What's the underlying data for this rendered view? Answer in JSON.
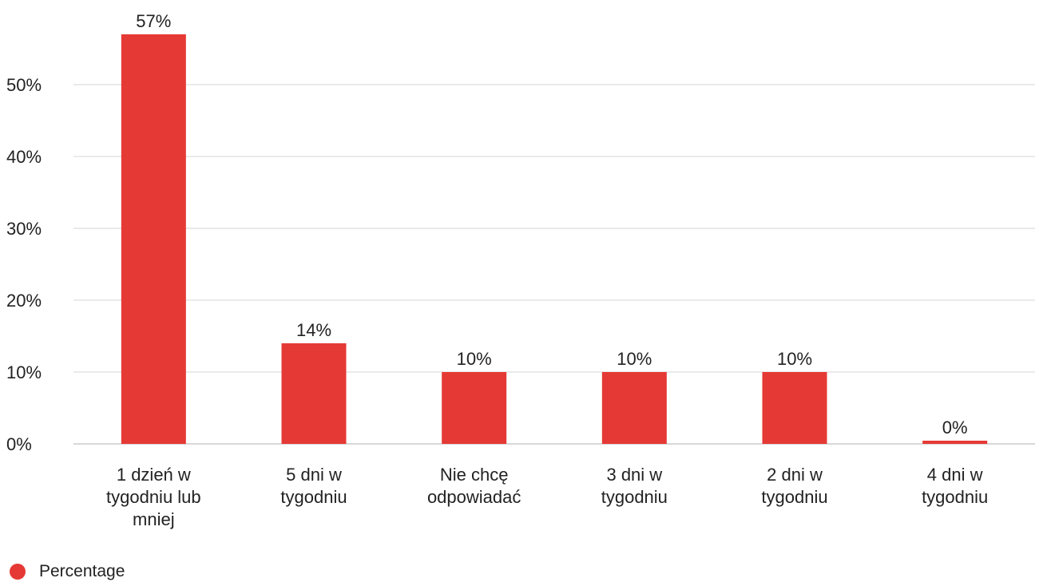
{
  "chart_data": {
    "type": "bar",
    "categories": [
      "1 dzień w tygodniu lub mniej",
      "5 dni w tygodniu",
      "Nie chcę odpowiadać",
      "3 dni w tygodniu",
      "2 dni w tygodniu",
      "4 dni w tygodniu"
    ],
    "category_lines": [
      [
        "1 dzień w",
        "tygodniu lub",
        "mniej"
      ],
      [
        "5 dni w",
        "tygodniu"
      ],
      [
        "Nie chcę",
        "odpowiadać"
      ],
      [
        "3 dni w",
        "tygodniu"
      ],
      [
        "2 dni w",
        "tygodniu"
      ],
      [
        "4 dni w",
        "tygodniu"
      ]
    ],
    "series": [
      {
        "name": "Percentage",
        "values": [
          57,
          14,
          10,
          10,
          10,
          0
        ],
        "color": "#e53935"
      }
    ],
    "data_labels": [
      "57%",
      "14%",
      "10%",
      "10%",
      "10%",
      "0%"
    ],
    "yticks": [
      0,
      10,
      20,
      30,
      40,
      50
    ],
    "ytick_labels": [
      "0%",
      "10%",
      "20%",
      "30%",
      "40%",
      "50%"
    ],
    "ylim": [
      0,
      60
    ],
    "grid": true,
    "legend_position": "bottom-left",
    "title": "",
    "xlabel": "",
    "ylabel": ""
  },
  "legend": {
    "label": "Percentage",
    "color": "#e53935"
  }
}
